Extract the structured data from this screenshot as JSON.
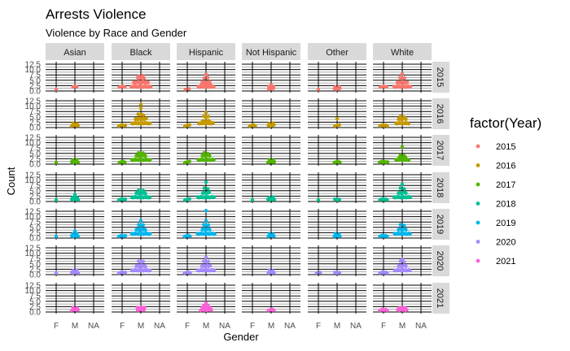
{
  "chart_data": {
    "type": "scatter",
    "title": "Arrests Violence",
    "subtitle": "Violence by Race and Gender",
    "xlabel": "Gender",
    "ylabel": "Count",
    "x_categories": [
      "F",
      "M",
      "NA"
    ],
    "y_ticks": [
      "0.0",
      "2.5",
      "5.0",
      "7.5",
      "10.0",
      "12.5"
    ],
    "ylim": [
      0,
      12.5
    ],
    "grid": true,
    "legend_position": "right",
    "legend_title": "factor(Year)",
    "races": [
      "Asian",
      "Black",
      "Hispanic",
      "Not Hispanic",
      "Other",
      "White"
    ],
    "years": [
      "2015",
      "2016",
      "2017",
      "2018",
      "2019",
      "2020",
      "2021"
    ],
    "series": [
      {
        "name": "2015",
        "color": "#F8766D",
        "points": {
          "Asian": [
            [
              "F",
              1,
              1
            ],
            [
              "M",
              2,
              1
            ],
            [
              "M",
              2,
              2
            ]
          ],
          "Black": [
            [
              "F",
              2,
              4
            ],
            [
              "M",
              2,
              20
            ],
            [
              "M",
              4,
              14
            ],
            [
              "M",
              6,
              5
            ],
            [
              "M",
              7,
              2
            ]
          ],
          "Hispanic": [
            [
              "F",
              1,
              2
            ],
            [
              "M",
              2,
              15
            ],
            [
              "M",
              3,
              8
            ],
            [
              "M",
              4,
              6
            ],
            [
              "M",
              6,
              2
            ],
            [
              "M",
              8,
              1
            ]
          ],
          "Not Hispanic": [
            [
              "M",
              1,
              3
            ],
            [
              "M",
              2,
              3
            ],
            [
              "M",
              3,
              1
            ]
          ],
          "Other": [
            [
              "F",
              1,
              1
            ],
            [
              "M",
              1,
              4
            ],
            [
              "M",
              2,
              2
            ]
          ],
          "White": [
            [
              "F",
              2,
              5
            ],
            [
              "M",
              2,
              16
            ],
            [
              "M",
              4,
              9
            ],
            [
              "M",
              6,
              3
            ],
            [
              "M",
              8,
              1
            ]
          ]
        }
      },
      {
        "name": "2016",
        "color": "#C49A00",
        "points": {
          "Asian": [
            [
              "M",
              1,
              5
            ],
            [
              "M",
              2,
              2
            ]
          ],
          "Black": [
            [
              "F",
              1,
              5
            ],
            [
              "M",
              2,
              18
            ],
            [
              "M",
              4,
              10
            ],
            [
              "M",
              6,
              4
            ],
            [
              "M",
              9,
              1
            ],
            [
              "M",
              11,
              1
            ]
          ],
          "Hispanic": [
            [
              "F",
              1,
              3
            ],
            [
              "M",
              2,
              14
            ],
            [
              "M",
              3,
              6
            ],
            [
              "M",
              5,
              3
            ],
            [
              "M",
              7,
              1
            ]
          ],
          "Not Hispanic": [
            [
              "F",
              1,
              4
            ],
            [
              "M",
              1,
              4
            ],
            [
              "M",
              2,
              2
            ]
          ],
          "Other": [
            [
              "M",
              1,
              3
            ],
            [
              "M",
              4,
              1
            ]
          ],
          "White": [
            [
              "F",
              1,
              6
            ],
            [
              "M",
              2,
              12
            ],
            [
              "M",
              4,
              6
            ],
            [
              "M",
              5,
              2
            ]
          ]
        }
      },
      {
        "name": "2017",
        "color": "#53B400",
        "points": {
          "Asian": [
            [
              "F",
              1,
              1
            ],
            [
              "M",
              1,
              5
            ],
            [
              "M",
              2,
              2
            ]
          ],
          "Black": [
            [
              "F",
              1,
              4
            ],
            [
              "M",
              2,
              18
            ],
            [
              "M",
              4,
              8
            ],
            [
              "M",
              5,
              3
            ]
          ],
          "Hispanic": [
            [
              "F",
              1,
              3
            ],
            [
              "M",
              2,
              15
            ],
            [
              "M",
              4,
              6
            ],
            [
              "M",
              5,
              2
            ]
          ],
          "Not Hispanic": [
            [
              "M",
              1,
              5
            ],
            [
              "M",
              2,
              2
            ]
          ],
          "Other": [
            [
              "M",
              1,
              4
            ]
          ],
          "White": [
            [
              "F",
              1,
              7
            ],
            [
              "M",
              2,
              12
            ],
            [
              "M",
              3,
              5
            ],
            [
              "M",
              4,
              2
            ],
            [
              "M",
              8,
              1
            ]
          ]
        }
      },
      {
        "name": "2018",
        "color": "#00C094",
        "points": {
          "Asian": [
            [
              "F",
              1,
              1
            ],
            [
              "M",
              1,
              5
            ],
            [
              "M",
              2,
              3
            ],
            [
              "M",
              3,
              1
            ]
          ],
          "Black": [
            [
              "F",
              1,
              5
            ],
            [
              "M",
              2,
              18
            ],
            [
              "M",
              4,
              8
            ],
            [
              "M",
              5,
              3
            ]
          ],
          "Hispanic": [
            [
              "F",
              1,
              3
            ],
            [
              "M",
              2,
              16
            ],
            [
              "M",
              4,
              5
            ],
            [
              "M",
              6,
              2
            ],
            [
              "M",
              9,
              1
            ]
          ],
          "Not Hispanic": [
            [
              "F",
              1,
              1
            ],
            [
              "M",
              1,
              5
            ],
            [
              "M",
              2,
              2
            ]
          ],
          "Other": [
            [
              "F",
              1,
              1
            ],
            [
              "M",
              1,
              3
            ]
          ],
          "White": [
            [
              "F",
              1,
              6
            ],
            [
              "M",
              2,
              16
            ],
            [
              "M",
              4,
              6
            ],
            [
              "M",
              6,
              2
            ],
            [
              "M",
              8,
              1
            ]
          ]
        }
      },
      {
        "name": "2019",
        "color": "#00B6EB",
        "points": {
          "Asian": [
            [
              "F",
              1,
              1
            ],
            [
              "M",
              1,
              5
            ],
            [
              "M",
              2,
              2
            ],
            [
              "M",
              3,
              1
            ]
          ],
          "Black": [
            [
              "F",
              1,
              5
            ],
            [
              "M",
              2,
              18
            ],
            [
              "M",
              4,
              8
            ],
            [
              "M",
              6,
              3
            ],
            [
              "M",
              8,
              1
            ]
          ],
          "Hispanic": [
            [
              "F",
              1,
              4
            ],
            [
              "M",
              2,
              17
            ],
            [
              "M",
              4,
              6
            ],
            [
              "M",
              6,
              3
            ],
            [
              "M",
              8,
              1
            ],
            [
              "M",
              13,
              1
            ]
          ],
          "Not Hispanic": [
            [
              "M",
              1,
              4
            ],
            [
              "M",
              2,
              2
            ]
          ],
          "Other": [
            [
              "M",
              1,
              4
            ],
            [
              "M",
              2,
              2
            ]
          ],
          "White": [
            [
              "F",
              1,
              6
            ],
            [
              "M",
              2,
              15
            ],
            [
              "M",
              4,
              6
            ],
            [
              "M",
              6,
              2
            ]
          ]
        }
      },
      {
        "name": "2020",
        "color": "#A58AFF",
        "points": {
          "Asian": [
            [
              "F",
              1,
              1
            ],
            [
              "M",
              1,
              5
            ],
            [
              "M",
              2,
              2
            ]
          ],
          "Black": [
            [
              "F",
              1,
              5
            ],
            [
              "M",
              2,
              18
            ],
            [
              "M",
              4,
              8
            ],
            [
              "M",
              6,
              3
            ]
          ],
          "Hispanic": [
            [
              "F",
              1,
              4
            ],
            [
              "M",
              2,
              16
            ],
            [
              "M",
              4,
              7
            ],
            [
              "M",
              6,
              3
            ],
            [
              "M",
              8,
              1
            ]
          ],
          "Not Hispanic": [
            [
              "M",
              1,
              4
            ],
            [
              "M",
              2,
              2
            ]
          ],
          "Other": [
            [
              "F",
              1,
              2
            ],
            [
              "M",
              1,
              3
            ]
          ],
          "White": [
            [
              "F",
              1,
              6
            ],
            [
              "M",
              2,
              15
            ],
            [
              "M",
              4,
              6
            ],
            [
              "M",
              6,
              2
            ],
            [
              "M",
              7,
              1
            ]
          ]
        }
      },
      {
        "name": "2021",
        "color": "#FB61D7",
        "points": {
          "Asian": [
            [
              "M",
              1,
              5
            ],
            [
              "M",
              2,
              2
            ]
          ],
          "Black": [
            [
              "M",
              1,
              5
            ],
            [
              "M",
              2,
              6
            ]
          ],
          "Hispanic": [
            [
              "M",
              1,
              10
            ],
            [
              "M",
              2,
              6
            ],
            [
              "M",
              3,
              3
            ],
            [
              "M",
              4,
              1
            ]
          ],
          "Not Hispanic": [
            [
              "M",
              1,
              4
            ]
          ],
          "Other": [],
          "White": [
            [
              "F",
              1,
              6
            ],
            [
              "M",
              1,
              8
            ],
            [
              "M",
              2,
              4
            ]
          ]
        }
      }
    ]
  }
}
